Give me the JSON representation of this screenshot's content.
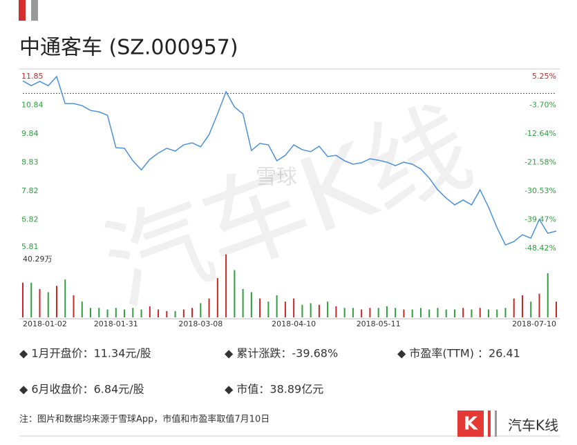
{
  "header": {
    "title": "中通客车 (SZ.000957)"
  },
  "watermark": {
    "big": "汽车K线",
    "logo": "雪球"
  },
  "chart_data": {
    "type": "line",
    "categories": [
      null,
      null,
      null,
      null,
      "2018-01-02",
      null,
      null,
      null,
      null,
      null,
      null,
      "2018-01-31",
      null,
      null,
      null,
      null,
      null,
      null,
      null,
      null,
      null,
      "2018-03-08",
      null,
      null,
      null,
      null,
      null,
      null,
      null,
      null,
      null,
      null,
      "2018-04-10",
      null,
      null,
      null,
      null,
      null,
      null,
      null,
      null,
      null,
      "2018-05-11",
      null,
      null,
      null,
      null,
      null,
      null,
      null,
      null,
      null,
      null,
      null,
      null,
      null,
      null,
      null,
      null,
      null,
      null,
      null,
      null,
      "2018-07-10"
    ],
    "series": [
      {
        "color": "#4a90d9",
        "values": [
          11.7,
          11.53,
          11.68,
          11.53,
          11.85,
          10.9,
          10.9,
          10.83,
          10.66,
          10.61,
          10.49,
          9.35,
          9.33,
          8.89,
          8.57,
          8.94,
          9.16,
          9.33,
          9.23,
          9.45,
          9.52,
          9.38,
          9.81,
          10.54,
          11.32,
          10.78,
          10.54,
          9.25,
          9.5,
          9.45,
          8.89,
          9.08,
          9.45,
          9.28,
          9.21,
          9.4,
          9.04,
          9.08,
          8.89,
          8.77,
          8.82,
          8.96,
          8.91,
          8.84,
          8.72,
          8.84,
          8.77,
          8.6,
          8.28,
          7.87,
          7.58,
          7.34,
          7.51,
          7.34,
          7.87,
          7.26,
          6.54,
          5.93,
          6.05,
          6.29,
          6.17,
          6.83,
          6.34,
          6.42
        ]
      }
    ],
    "ylim": [
      5.81,
      11.85
    ],
    "yticks": [
      5.81,
      6.82,
      7.82,
      8.83,
      9.84,
      10.84,
      11.85
    ],
    "y2lim": [
      -48.42,
      5.25
    ],
    "y2ticks": [
      {
        "value": -48.42,
        "label": "-48.42%"
      },
      {
        "value": -39.47,
        "label": "-39.47%"
      },
      {
        "value": -30.53,
        "label": "-30.53%"
      },
      {
        "value": -21.58,
        "label": "-21.58%"
      },
      {
        "value": -12.64,
        "label": "-12.64%"
      },
      {
        "value": -3.7,
        "label": "-3.70%"
      },
      {
        "value": 5.25,
        "label": "5.25%"
      }
    ],
    "reference_line": 11.26,
    "up_color": "#c62828",
    "down_color": "#2e9e3e",
    "volume": {
      "ylim": [
        0,
        40.29
      ],
      "max_label": {
        "value": 40.29,
        "label": "40.29万"
      },
      "values": [
        22,
        22,
        18,
        16,
        20,
        24,
        14,
        10,
        6,
        6,
        5,
        6,
        5,
        6,
        5,
        7,
        5,
        4,
        4,
        5,
        6,
        9,
        12,
        25,
        40,
        30,
        18,
        16,
        12,
        10,
        14,
        10,
        12,
        8,
        9,
        8,
        10,
        7,
        6,
        6,
        5,
        6,
        6,
        7,
        6,
        5,
        5,
        6,
        5,
        6,
        5,
        5,
        6,
        5,
        6,
        5,
        5,
        6,
        12,
        14,
        10,
        15,
        28,
        10
      ]
    }
  },
  "info": [
    "◆ 1月开盘价：11.34元/股",
    "◆ 累计涨跌：-39.68%",
    "◆ 市盈率(TTM) ：26.41",
    "◆ 6月收盘价：6.84元/股",
    "◆ 市值：38.89亿元"
  ],
  "footer": {
    "note": "注：图片和数据均来源于雪球App，市值和市盈率取值7月10日",
    "brand": "汽车K线",
    "icon": "K"
  }
}
